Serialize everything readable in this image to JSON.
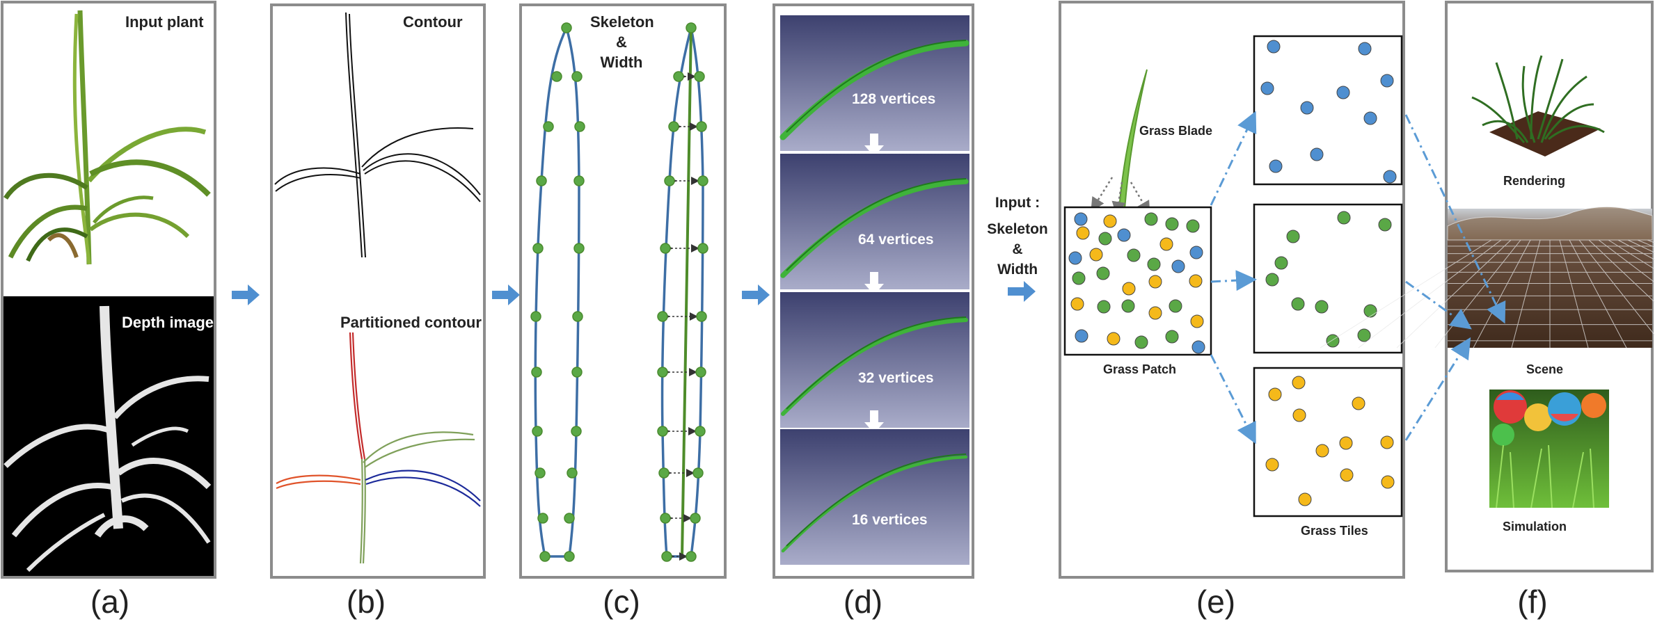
{
  "panels": {
    "a": {
      "caption": "(a)",
      "top_label": "Input plant",
      "bottom_label": "Depth image"
    },
    "b": {
      "caption": "(b)",
      "top_label": "Contour",
      "bottom_label": "Partitioned contour"
    },
    "c": {
      "caption": "(c)",
      "label_line1": "Skeleton",
      "label_line2": "&",
      "label_line3": "Width"
    },
    "d": {
      "caption": "(d)",
      "levels": [
        "128 vertices",
        "64 vertices",
        "32 vertices",
        "16 vertices"
      ]
    },
    "e": {
      "caption": "(e)",
      "input_line1": "Input :",
      "input_line2": "Skeleton",
      "input_line3": "&",
      "input_line4": "Width",
      "grass_blade": "Grass Blade",
      "grass_patch": "Grass Patch",
      "grass_tiles": "Grass Tiles"
    },
    "f": {
      "caption": "(f)",
      "rendering": "Rendering",
      "scene": "Scene",
      "simulation": "Simulation"
    }
  },
  "colors": {
    "frame": "#8c8c8c",
    "arrow": "#4f8fd0",
    "dash_arrow": "#5b9bd5",
    "dot_blue": "#4f8fd0",
    "dot_green": "#5aa846",
    "dot_yellow": "#f5b91a",
    "skeleton_line": "#3a6fa8",
    "leaf_green": "#5b9c2f",
    "panel_d_bg": "#4a4e7e"
  }
}
